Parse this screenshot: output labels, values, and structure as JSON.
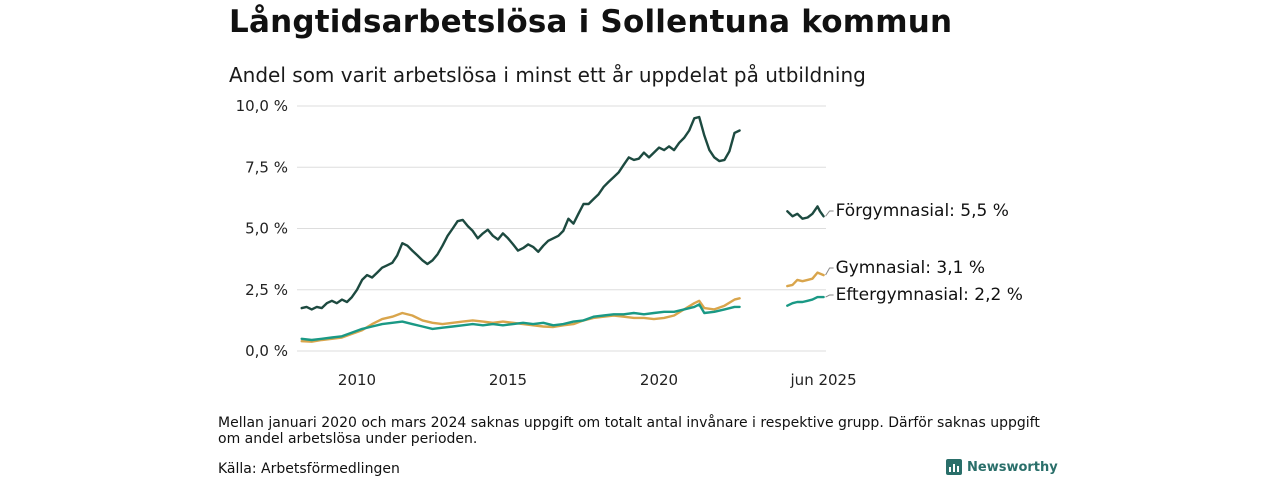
{
  "title": "Långtidsarbetslösa i Sollentuna kommun",
  "subtitle": "Andel som varit arbetslösa i minst ett år uppdelat på utbildning",
  "note": "Mellan januari 2020 och mars 2024 saknas uppgift om totalt antal invånare i respektive grupp. Därför saknas uppgift om andel arbetslösa under perioden.",
  "source": "Källa: Arbetsförmedlingen",
  "brand": "Newsworthy",
  "chart_data": {
    "type": "line",
    "title": "Långtidsarbetslösa i Sollentuna kommun",
    "subtitle": "Andel som varit arbetslösa i minst ett år uppdelat på utbildning",
    "ylim": [
      0,
      10
    ],
    "y_ticks": [
      0,
      2.5,
      5,
      7.5,
      10
    ],
    "y_tick_labels": [
      "0,0 %",
      "2,5 %",
      "5,0 %",
      "7,5 %",
      "10,0 %"
    ],
    "x_ticks": [
      2010,
      2015,
      2020,
      2025.45
    ],
    "x_tick_labels": [
      "2010",
      "2015",
      "2020",
      "jun 2025"
    ],
    "grid": true,
    "series": [
      {
        "name": "Förgymnasial",
        "color": "#1d4a40",
        "end_label": "Förgymnasial: 5,5 %",
        "segments": [
          [
            [
              2008.17,
              1.75
            ],
            [
              2008.33,
              1.8
            ],
            [
              2008.5,
              1.7
            ],
            [
              2008.67,
              1.8
            ],
            [
              2008.83,
              1.75
            ],
            [
              2009.0,
              1.95
            ],
            [
              2009.17,
              2.05
            ],
            [
              2009.33,
              1.95
            ],
            [
              2009.5,
              2.1
            ],
            [
              2009.67,
              2.0
            ],
            [
              2009.83,
              2.2
            ],
            [
              2010.0,
              2.5
            ],
            [
              2010.17,
              2.9
            ],
            [
              2010.33,
              3.1
            ],
            [
              2010.5,
              3.0
            ],
            [
              2010.67,
              3.2
            ],
            [
              2010.83,
              3.4
            ],
            [
              2011.0,
              3.5
            ],
            [
              2011.17,
              3.6
            ],
            [
              2011.33,
              3.9
            ],
            [
              2011.5,
              4.4
            ],
            [
              2011.67,
              4.3
            ],
            [
              2011.83,
              4.1
            ],
            [
              2012.0,
              3.9
            ],
            [
              2012.17,
              3.7
            ],
            [
              2012.33,
              3.55
            ],
            [
              2012.5,
              3.7
            ],
            [
              2012.67,
              3.95
            ],
            [
              2012.83,
              4.3
            ],
            [
              2013.0,
              4.7
            ],
            [
              2013.17,
              5.0
            ],
            [
              2013.33,
              5.3
            ],
            [
              2013.5,
              5.35
            ],
            [
              2013.67,
              5.1
            ],
            [
              2013.83,
              4.9
            ],
            [
              2014.0,
              4.6
            ],
            [
              2014.17,
              4.8
            ],
            [
              2014.33,
              4.95
            ],
            [
              2014.5,
              4.7
            ],
            [
              2014.67,
              4.55
            ],
            [
              2014.83,
              4.8
            ],
            [
              2015.0,
              4.6
            ],
            [
              2015.17,
              4.35
            ],
            [
              2015.33,
              4.1
            ],
            [
              2015.5,
              4.2
            ],
            [
              2015.67,
              4.35
            ],
            [
              2015.83,
              4.25
            ],
            [
              2016.0,
              4.05
            ],
            [
              2016.17,
              4.3
            ],
            [
              2016.33,
              4.5
            ],
            [
              2016.67,
              4.7
            ],
            [
              2016.83,
              4.9
            ],
            [
              2017.0,
              5.4
            ],
            [
              2017.17,
              5.2
            ],
            [
              2017.33,
              5.6
            ],
            [
              2017.5,
              6.0
            ],
            [
              2017.67,
              6.0
            ],
            [
              2017.83,
              6.2
            ],
            [
              2018.0,
              6.4
            ],
            [
              2018.17,
              6.7
            ],
            [
              2018.33,
              6.9
            ],
            [
              2018.5,
              7.1
            ],
            [
              2018.67,
              7.3
            ],
            [
              2018.83,
              7.6
            ],
            [
              2019.0,
              7.9
            ],
            [
              2019.17,
              7.8
            ],
            [
              2019.33,
              7.85
            ],
            [
              2019.5,
              8.1
            ],
            [
              2019.67,
              7.9
            ],
            [
              2019.83,
              8.1
            ],
            [
              2020.0,
              8.3
            ],
            [
              2020.17,
              8.2
            ],
            [
              2020.33,
              8.35
            ],
            [
              2020.5,
              8.2
            ],
            [
              2020.67,
              8.5
            ],
            [
              2020.83,
              8.7
            ],
            [
              2021.0,
              9.0
            ],
            [
              2021.17,
              9.5
            ],
            [
              2021.33,
              9.55
            ],
            [
              2021.5,
              8.8
            ],
            [
              2021.67,
              8.2
            ],
            [
              2021.83,
              7.9
            ],
            [
              2022.0,
              7.75
            ],
            [
              2022.17,
              7.8
            ],
            [
              2022.33,
              8.15
            ],
            [
              2022.5,
              8.9
            ],
            [
              2022.67,
              9.0
            ]
          ],
          [
            [
              2024.25,
              5.7
            ],
            [
              2024.42,
              5.5
            ],
            [
              2024.58,
              5.6
            ],
            [
              2024.75,
              5.4
            ],
            [
              2024.92,
              5.45
            ],
            [
              2025.08,
              5.6
            ],
            [
              2025.25,
              5.9
            ],
            [
              2025.33,
              5.7
            ],
            [
              2025.45,
              5.5
            ]
          ]
        ]
      },
      {
        "name": "Gymnasial",
        "color": "#d9a54c",
        "end_label": "Gymnasial: 3,1 %",
        "segments": [
          [
            [
              2008.17,
              0.4
            ],
            [
              2008.5,
              0.38
            ],
            [
              2008.83,
              0.45
            ],
            [
              2009.17,
              0.5
            ],
            [
              2009.5,
              0.55
            ],
            [
              2009.83,
              0.7
            ],
            [
              2010.17,
              0.85
            ],
            [
              2010.5,
              1.1
            ],
            [
              2010.83,
              1.3
            ],
            [
              2011.17,
              1.4
            ],
            [
              2011.5,
              1.55
            ],
            [
              2011.83,
              1.45
            ],
            [
              2012.17,
              1.25
            ],
            [
              2012.5,
              1.15
            ],
            [
              2012.83,
              1.1
            ],
            [
              2013.17,
              1.15
            ],
            [
              2013.5,
              1.2
            ],
            [
              2013.83,
              1.25
            ],
            [
              2014.17,
              1.2
            ],
            [
              2014.5,
              1.15
            ],
            [
              2014.83,
              1.2
            ],
            [
              2015.17,
              1.15
            ],
            [
              2015.5,
              1.1
            ],
            [
              2015.83,
              1.05
            ],
            [
              2016.17,
              1.0
            ],
            [
              2016.5,
              0.98
            ],
            [
              2016.83,
              1.05
            ],
            [
              2017.17,
              1.1
            ],
            [
              2017.5,
              1.25
            ],
            [
              2017.83,
              1.35
            ],
            [
              2018.17,
              1.4
            ],
            [
              2018.5,
              1.45
            ],
            [
              2018.83,
              1.4
            ],
            [
              2019.17,
              1.35
            ],
            [
              2019.5,
              1.35
            ],
            [
              2019.83,
              1.3
            ],
            [
              2020.17,
              1.35
            ],
            [
              2020.5,
              1.45
            ],
            [
              2020.83,
              1.7
            ],
            [
              2021.17,
              1.95
            ],
            [
              2021.33,
              2.05
            ],
            [
              2021.5,
              1.75
            ],
            [
              2021.83,
              1.7
            ],
            [
              2022.17,
              1.85
            ],
            [
              2022.5,
              2.1
            ],
            [
              2022.67,
              2.15
            ]
          ],
          [
            [
              2024.25,
              2.65
            ],
            [
              2024.42,
              2.7
            ],
            [
              2024.58,
              2.9
            ],
            [
              2024.75,
              2.85
            ],
            [
              2024.92,
              2.9
            ],
            [
              2025.08,
              2.95
            ],
            [
              2025.25,
              3.2
            ],
            [
              2025.45,
              3.1
            ]
          ]
        ]
      },
      {
        "name": "Eftergymnasial",
        "color": "#1a9985",
        "end_label": "Eftergymnasial: 2,2 %",
        "segments": [
          [
            [
              2008.17,
              0.5
            ],
            [
              2008.5,
              0.45
            ],
            [
              2008.83,
              0.5
            ],
            [
              2009.17,
              0.55
            ],
            [
              2009.5,
              0.6
            ],
            [
              2009.83,
              0.75
            ],
            [
              2010.17,
              0.9
            ],
            [
              2010.5,
              1.0
            ],
            [
              2010.83,
              1.1
            ],
            [
              2011.17,
              1.15
            ],
            [
              2011.5,
              1.2
            ],
            [
              2011.83,
              1.1
            ],
            [
              2012.17,
              1.0
            ],
            [
              2012.5,
              0.9
            ],
            [
              2012.83,
              0.95
            ],
            [
              2013.17,
              1.0
            ],
            [
              2013.5,
              1.05
            ],
            [
              2013.83,
              1.1
            ],
            [
              2014.17,
              1.05
            ],
            [
              2014.5,
              1.1
            ],
            [
              2014.83,
              1.05
            ],
            [
              2015.17,
              1.1
            ],
            [
              2015.5,
              1.15
            ],
            [
              2015.83,
              1.1
            ],
            [
              2016.17,
              1.15
            ],
            [
              2016.5,
              1.05
            ],
            [
              2016.83,
              1.1
            ],
            [
              2017.17,
              1.2
            ],
            [
              2017.5,
              1.25
            ],
            [
              2017.83,
              1.4
            ],
            [
              2018.17,
              1.45
            ],
            [
              2018.5,
              1.5
            ],
            [
              2018.83,
              1.5
            ],
            [
              2019.17,
              1.55
            ],
            [
              2019.5,
              1.5
            ],
            [
              2019.83,
              1.55
            ],
            [
              2020.17,
              1.6
            ],
            [
              2020.5,
              1.6
            ],
            [
              2020.83,
              1.7
            ],
            [
              2021.17,
              1.8
            ],
            [
              2021.33,
              1.9
            ],
            [
              2021.5,
              1.55
            ],
            [
              2021.83,
              1.6
            ],
            [
              2022.17,
              1.7
            ],
            [
              2022.5,
              1.8
            ],
            [
              2022.67,
              1.8
            ]
          ],
          [
            [
              2024.25,
              1.85
            ],
            [
              2024.42,
              1.95
            ],
            [
              2024.58,
              2.0
            ],
            [
              2024.75,
              2.0
            ],
            [
              2024.92,
              2.05
            ],
            [
              2025.08,
              2.1
            ],
            [
              2025.25,
              2.2
            ],
            [
              2025.45,
              2.2
            ]
          ]
        ]
      }
    ]
  }
}
